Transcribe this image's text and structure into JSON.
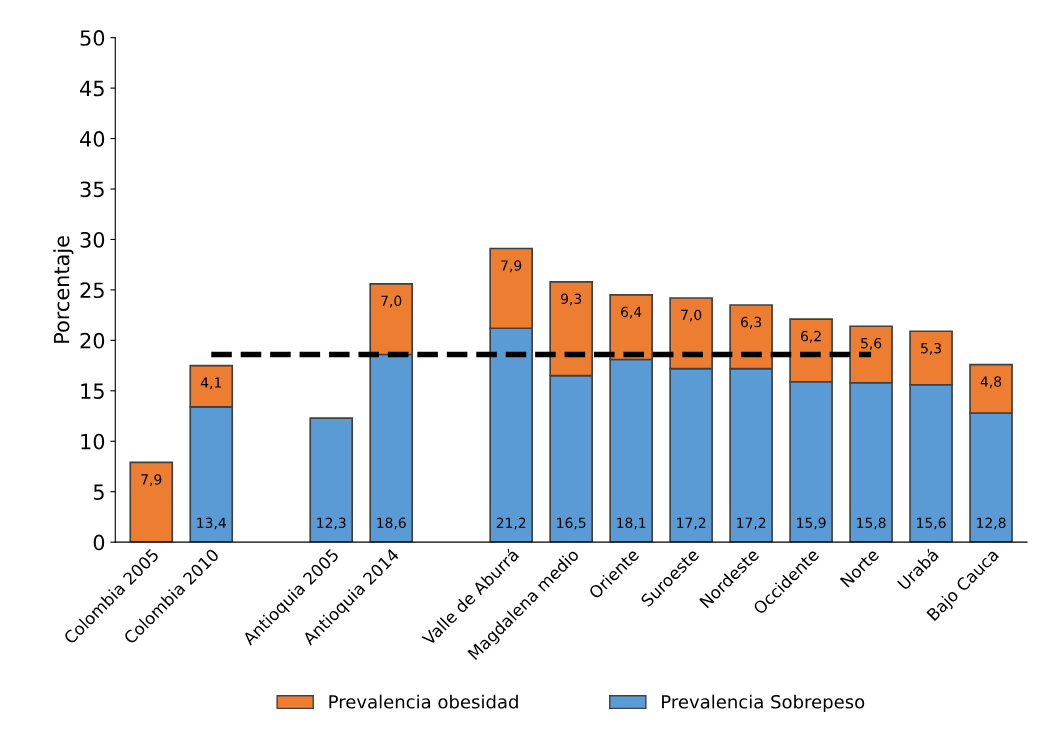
{
  "chart_data": {
    "type": "bar",
    "stacked": true,
    "ylabel": "Porcentaje",
    "categories": [
      "Colombia 2005",
      "Colombia 2010",
      null,
      "Antioquia 2005",
      "Antioquia 2014",
      null,
      "Valle de Aburrá",
      "Magdalena medio",
      "Oriente",
      "Suroeste",
      "Nordeste",
      "Occidente",
      "Norte",
      "Urabá",
      "Bajo Cauca"
    ],
    "series": [
      {
        "name": "Prevalencia Sobrepeso",
        "color": "#5b9bd5",
        "values": [
          null,
          13.4,
          null,
          12.3,
          18.6,
          null,
          21.2,
          16.5,
          18.1,
          17.2,
          17.2,
          15.9,
          15.8,
          15.6,
          12.8
        ],
        "value_labels": [
          null,
          "13,4",
          null,
          "12,3",
          "18,6",
          null,
          "21,2",
          "16,5",
          "18,1",
          "17,2",
          "17,2",
          "15,9",
          "15,8",
          "15,6",
          "12,8"
        ]
      },
      {
        "name": "Prevalencia obesidad",
        "color": "#ed7d31",
        "values": [
          7.9,
          4.1,
          null,
          null,
          7.0,
          null,
          7.9,
          9.3,
          6.4,
          7.0,
          6.3,
          6.2,
          5.6,
          5.3,
          4.8
        ],
        "value_labels": [
          "7,9",
          "4,1",
          null,
          null,
          "7,0",
          null,
          "7,9",
          "9,3",
          "6,4",
          "7,0",
          "6,3",
          "6,2",
          "5,6",
          "5,3",
          "4,8"
        ]
      },
      {
        "type": "line",
        "color": "#000000",
        "line_style": "dashed",
        "values": [
          null,
          18.6,
          18.6,
          18.6,
          18.6,
          18.6,
          18.6,
          18.6,
          18.6,
          18.6,
          18.6,
          18.6,
          18.6,
          null,
          null
        ]
      }
    ],
    "ylim": [
      0,
      50
    ],
    "yticks": [
      0,
      5,
      10,
      15,
      20,
      25,
      30,
      35,
      40,
      45,
      50
    ],
    "legend": "bottom"
  }
}
